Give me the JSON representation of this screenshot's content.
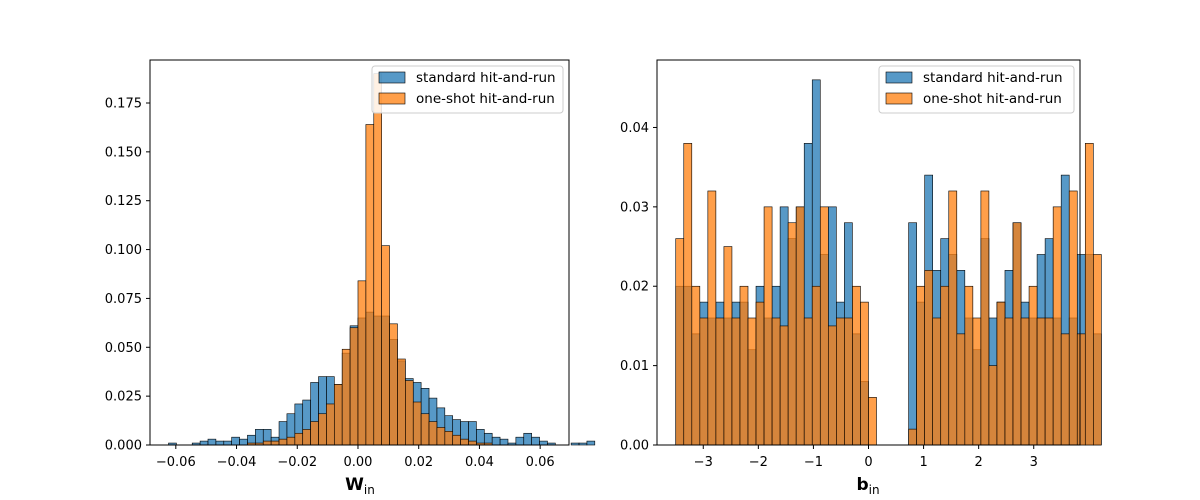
{
  "chart_data": [
    {
      "type": "histogram",
      "xlabel": "W",
      "xlabel_sub": "in",
      "ylabel": "",
      "xlim": [
        -0.0685,
        0.0695
      ],
      "ylim": [
        0,
        0.197
      ],
      "xticks": [
        -0.06,
        -0.04,
        -0.02,
        0.0,
        0.02,
        0.04,
        0.06
      ],
      "xtick_labels": [
        "−0.06",
        "−0.04",
        "−0.02",
        "0.00",
        "0.02",
        "0.04",
        "0.06"
      ],
      "yticks": [
        0.0,
        0.025,
        0.05,
        0.075,
        0.1,
        0.125,
        0.15,
        0.175
      ],
      "ytick_labels": [
        "0.000",
        "0.025",
        "0.050",
        "0.075",
        "0.100",
        "0.125",
        "0.150",
        "0.175"
      ],
      "legend_position": "top-right",
      "series": [
        {
          "name": "standard hit-and-run",
          "color": "#1f77b4",
          "bin_start": -0.0624,
          "bin_width": 0.0026,
          "values": [
            0.001,
            0,
            0,
            0.001,
            0.002,
            0.003,
            0.002,
            0.002,
            0.004,
            0.003,
            0.005,
            0.008,
            0.008,
            0.004,
            0.012,
            0.016,
            0.021,
            0.023,
            0.032,
            0.035,
            0.035,
            0.031,
            0.047,
            0.061,
            0.065,
            0.068,
            0.066,
            0.066,
            0.054,
            0.043,
            0.034,
            0.032,
            0.029,
            0.024,
            0.019,
            0.015,
            0.013,
            0.012,
            0.012,
            0.008,
            0.006,
            0.004,
            0.003,
            0.001,
            0.004,
            0.006,
            0.004,
            0.002,
            0.001,
            0,
            0,
            0.001,
            0.001,
            0.002
          ]
        },
        {
          "name": "one-shot hit-and-run",
          "color": "#ff7f0e",
          "bin_start": -0.0624,
          "bin_width": 0.0026,
          "values": [
            0,
            0,
            0,
            0,
            0,
            0,
            0,
            0,
            0,
            0,
            0.001,
            0.001,
            0.002,
            0.002,
            0.003,
            0.004,
            0.006,
            0.008,
            0.012,
            0.016,
            0.021,
            0.031,
            0.049,
            0.06,
            0.084,
            0.164,
            0.19,
            0.102,
            0.062,
            0.044,
            0.033,
            0.022,
            0.016,
            0.012,
            0.009,
            0.007,
            0.005,
            0.003,
            0.002,
            0.001,
            0.001,
            0,
            0,
            0,
            0,
            0,
            0,
            0,
            0,
            0,
            0,
            0,
            0,
            0
          ]
        }
      ]
    },
    {
      "type": "histogram",
      "xlabel": "b",
      "xlabel_sub": "in",
      "ylabel": "",
      "xlim": [
        -3.84,
        3.84
      ],
      "ylim": [
        0,
        0.0485
      ],
      "xticks": [
        -3,
        -2,
        -1,
        0,
        1,
        2,
        3
      ],
      "xtick_labels": [
        "−3",
        "−2",
        "−1",
        "0",
        "1",
        "2",
        "3"
      ],
      "yticks": [
        0.0,
        0.01,
        0.02,
        0.03,
        0.04
      ],
      "ytick_labels": [
        "0.00",
        "0.01",
        "0.02",
        "0.03",
        "0.04"
      ],
      "legend_position": "top-right",
      "series": [
        {
          "name": "standard hit-and-run",
          "color": "#1f77b4",
          "bin_start": -3.5,
          "bin_width": 0.1458,
          "values": [
            0.02,
            0.02,
            0.014,
            0.018,
            0.016,
            0.018,
            0.016,
            0.018,
            0.018,
            0.012,
            0.02,
            0.016,
            0.02,
            0.03,
            0.026,
            0.03,
            0.038,
            0.046,
            0.024,
            0.03,
            0.018,
            0.028,
            0.014,
            0.008,
            0,
            0,
            0,
            0,
            0,
            0.028,
            0.018,
            0.034,
            0.022,
            0.026,
            0.024,
            0.022,
            0.016,
            0.012,
            0.026,
            0.016,
            0.018,
            0.022,
            0.028,
            0.018,
            0.016,
            0.024,
            0.026,
            0.016,
            0.034,
            0.016,
            0.024,
            0.024,
            0.014
          ]
        },
        {
          "name": "one-shot hit-and-run",
          "color": "#ff7f0e",
          "bin_start": -3.5,
          "bin_width": 0.1458,
          "values": [
            0.026,
            0.038,
            0.02,
            0.016,
            0.032,
            0.016,
            0.025,
            0.016,
            0.02,
            0.016,
            0.018,
            0.03,
            0.016,
            0.015,
            0.028,
            0.03,
            0.016,
            0.02,
            0.03,
            0.015,
            0.016,
            0.016,
            0.02,
            0.018,
            0.006,
            0,
            0,
            0,
            0,
            0.002,
            0.02,
            0.022,
            0.016,
            0.02,
            0.032,
            0.014,
            0.02,
            0.016,
            0.032,
            0.01,
            0.018,
            0.016,
            0.028,
            0.016,
            0.02,
            0.016,
            0.016,
            0.03,
            0.014,
            0.032,
            0.014,
            0.038,
            0.024
          ]
        }
      ]
    }
  ]
}
